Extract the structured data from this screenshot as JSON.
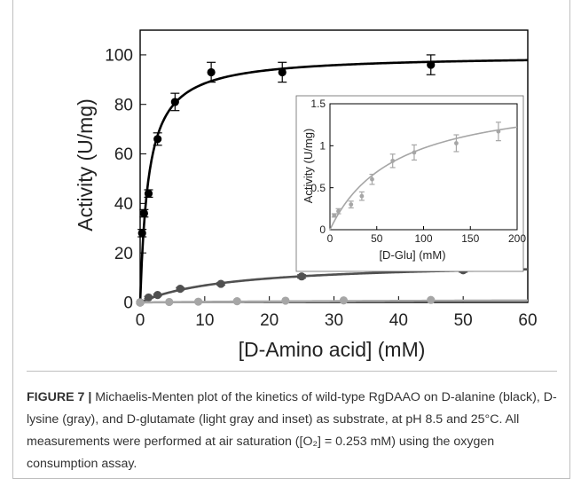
{
  "chart_data": [
    {
      "type": "scatter",
      "xlabel": "[D-Amino acid] (mM)",
      "ylabel": "Activity (U/mg)",
      "xlim": [
        0,
        60
      ],
      "ylim": [
        0,
        110
      ],
      "xticks": [
        "0",
        "10",
        "20",
        "30",
        "40",
        "50",
        "60"
      ],
      "yticks": [
        "0",
        "20",
        "40",
        "60",
        "80",
        "100"
      ],
      "grid": false,
      "series": [
        {
          "color": "#000000",
          "points": [
            {
              "x": 0,
              "y": 0,
              "err": 0
            },
            {
              "x": 0.3,
              "y": 28,
              "err": 1.5
            },
            {
              "x": 0.6,
              "y": 36,
              "err": 1.5
            },
            {
              "x": 1.3,
              "y": 44,
              "err": 1.5
            },
            {
              "x": 2.7,
              "y": 66,
              "err": 2.5
            },
            {
              "x": 5.4,
              "y": 81,
              "err": 3.5
            },
            {
              "x": 11,
              "y": 93,
              "err": 4
            },
            {
              "x": 22,
              "y": 93,
              "err": 4
            },
            {
              "x": 45,
              "y": 96,
              "err": 4
            }
          ],
          "fit": {
            "vmax": 100,
            "km": 1.3
          }
        },
        {
          "color": "#505050",
          "points": [
            {
              "x": 0,
              "y": 0,
              "err": 0
            },
            {
              "x": 1.3,
              "y": 2,
              "err": 0.4
            },
            {
              "x": 2.7,
              "y": 3,
              "err": 0.4
            },
            {
              "x": 6.2,
              "y": 5.5,
              "err": 0.5
            },
            {
              "x": 12.5,
              "y": 7.5,
              "err": 0.5
            },
            {
              "x": 25,
              "y": 10.5,
              "err": 0.7
            },
            {
              "x": 50,
              "y": 13,
              "err": 0.8
            }
          ],
          "fit": {
            "vmax": 16.5,
            "km": 14
          }
        },
        {
          "color": "#a6a6a6",
          "points": [
            {
              "x": 0,
              "y": 0,
              "err": 0
            },
            {
              "x": 4.5,
              "y": 0.2,
              "err": 0
            },
            {
              "x": 9,
              "y": 0.3,
              "err": 0
            },
            {
              "x": 15,
              "y": 0.5,
              "err": 0
            },
            {
              "x": 22.5,
              "y": 0.7,
              "err": 0
            },
            {
              "x": 31.5,
              "y": 0.8,
              "err": 0
            },
            {
              "x": 45,
              "y": 1.0,
              "err": 0
            }
          ],
          "fit": {
            "vmax": 1.65,
            "km": 70
          }
        }
      ]
    },
    {
      "type": "scatter",
      "xlabel": "[D-Glu] (mM)",
      "ylabel": "Activity (U/mg)",
      "xlim": [
        0,
        200
      ],
      "ylim": [
        0,
        1.5
      ],
      "xticks": [
        "0",
        "50",
        "100",
        "150",
        "200"
      ],
      "yticks": [
        "0",
        "0.5",
        "1",
        "1.5"
      ],
      "grid": false,
      "series": [
        {
          "color": "#a6a6a6",
          "points": [
            {
              "x": 4.5,
              "y": 0.17,
              "err": 0.02
            },
            {
              "x": 9,
              "y": 0.22,
              "err": 0.03
            },
            {
              "x": 22.5,
              "y": 0.3,
              "err": 0.04
            },
            {
              "x": 34,
              "y": 0.4,
              "err": 0.05
            },
            {
              "x": 45,
              "y": 0.6,
              "err": 0.06
            },
            {
              "x": 67,
              "y": 0.82,
              "err": 0.08
            },
            {
              "x": 90,
              "y": 0.92,
              "err": 0.09
            },
            {
              "x": 135,
              "y": 1.03,
              "err": 0.1
            },
            {
              "x": 180,
              "y": 1.17,
              "err": 0.11
            }
          ],
          "fit": {
            "vmax": 1.65,
            "km": 70
          }
        }
      ]
    }
  ],
  "caption": {
    "label": "FIGURE 7 |",
    "text": "Michaelis-Menten plot of the kinetics of wild-type RgDAAO on D-alanine (black), D-lysine (gray), and D-glutamate (light gray and inset) as substrate, at pH 8.5 and 25°C. All measurements were performed at air saturation ([O₂] = 0.253 mM) using the oxygen consumption assay."
  }
}
